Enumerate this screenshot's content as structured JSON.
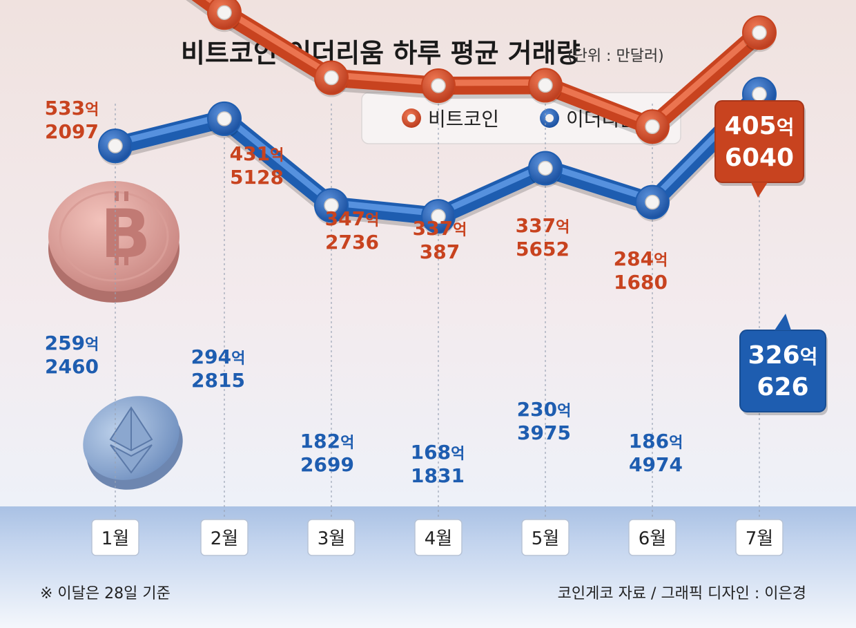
{
  "title": "비트코인·이더리움 하루 평균 거래량",
  "unit": "(단위 : 만달러)",
  "legend": {
    "btc": "비트코인",
    "eth": "이더리움"
  },
  "footnote": "※ 이달은 28일 기준",
  "source": "코인게코 자료 / 그래픽 디자인 : 이은경",
  "colors": {
    "btc": "#c8431f",
    "eth": "#1e5db0"
  },
  "chart_data": {
    "type": "line",
    "title": "비트코인·이더리움 하루 평균 거래량",
    "unit": "(단위 : 만달러)",
    "categories": [
      "1월",
      "2월",
      "3월",
      "4월",
      "5월",
      "6월",
      "7월"
    ],
    "series": [
      {
        "name": "비트코인",
        "values": [
          5332097,
          4315128,
          3472736,
          3370387,
          3375652,
          2841680,
          4056040
        ],
        "labels": [
          {
            "top": "533",
            "eok": "억",
            "bottom": "2097"
          },
          {
            "top": "431",
            "eok": "억",
            "bottom": "5128"
          },
          {
            "top": "347",
            "eok": "억",
            "bottom": "2736"
          },
          {
            "top": "337",
            "eok": "억",
            "bottom": "387"
          },
          {
            "top": "337",
            "eok": "억",
            "bottom": "5652"
          },
          {
            "top": "284",
            "eok": "억",
            "bottom": "1680"
          },
          {
            "top": "405",
            "eok": "억",
            "bottom": "6040"
          }
        ]
      },
      {
        "name": "이더리움",
        "values": [
          2592460,
          2942815,
          1822699,
          1681831,
          2303975,
          1864974,
          3260626
        ],
        "labels": [
          {
            "top": "259",
            "eok": "억",
            "bottom": "2460"
          },
          {
            "top": "294",
            "eok": "억",
            "bottom": "2815"
          },
          {
            "top": "182",
            "eok": "억",
            "bottom": "2699"
          },
          {
            "top": "168",
            "eok": "억",
            "bottom": "1831"
          },
          {
            "top": "230",
            "eok": "억",
            "bottom": "3975"
          },
          {
            "top": "186",
            "eok": "억",
            "bottom": "4974"
          },
          {
            "top": "326",
            "eok": "억",
            "bottom": "626"
          }
        ]
      }
    ]
  }
}
